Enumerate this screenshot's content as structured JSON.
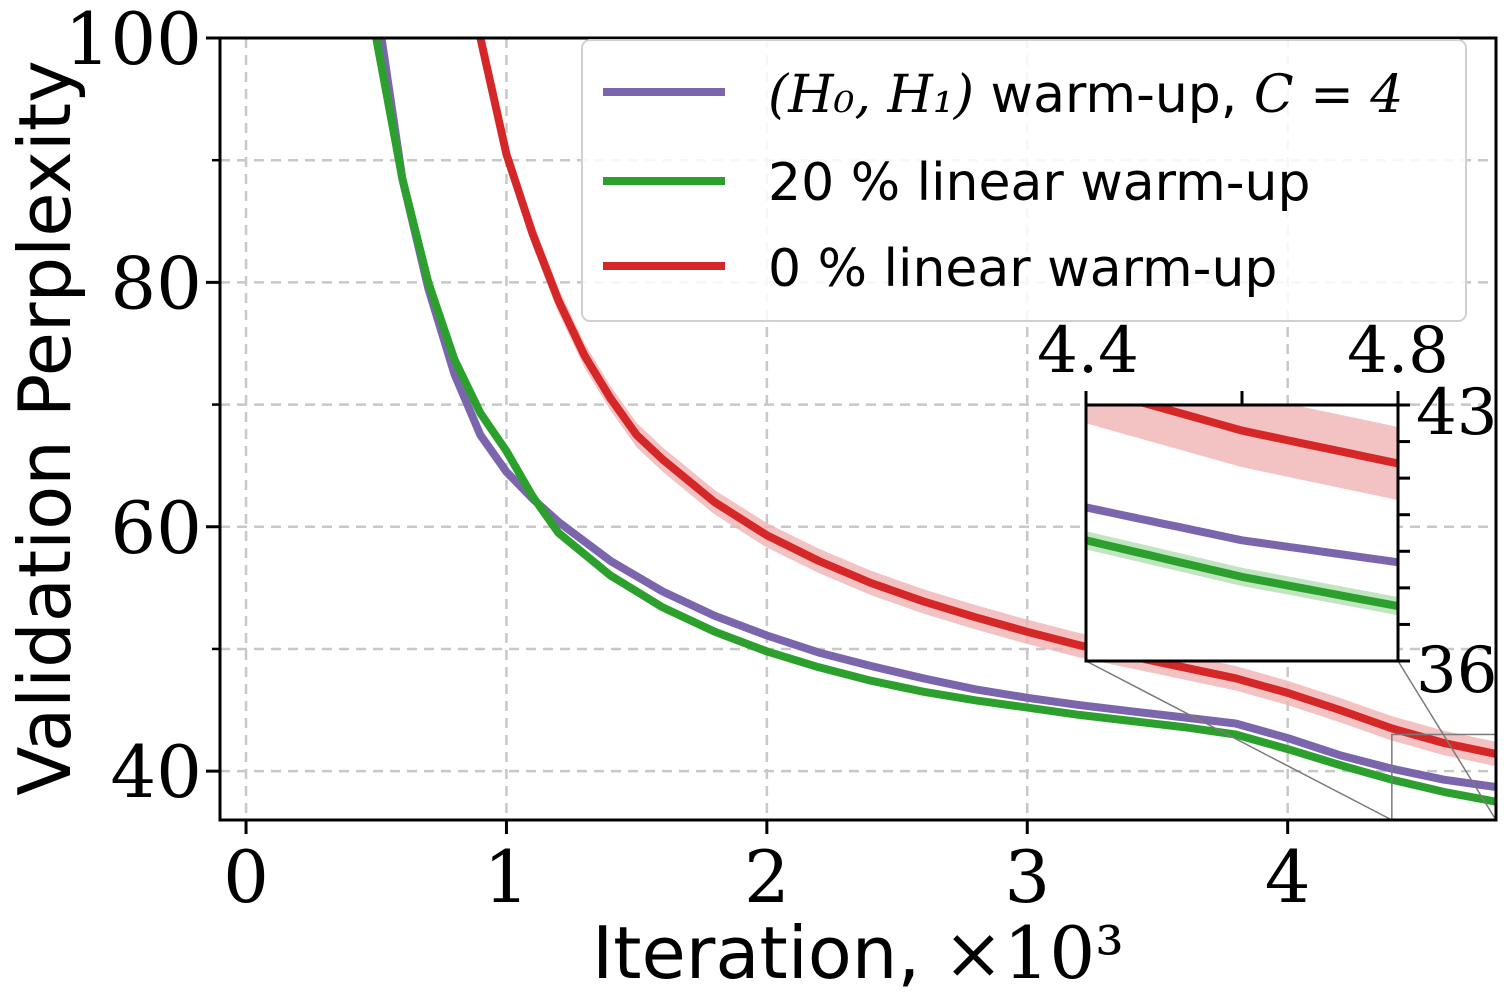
{
  "colors": {
    "purple": "#7b66ae",
    "green": "#2ca02c",
    "red": "#d62728",
    "red_band": "#f0b3b4",
    "green_band": "#a6d9a6"
  },
  "chart_data": {
    "type": "line",
    "title": "",
    "xlabel": "Iteration, ×10³",
    "xlabel_text": "Iteration, ",
    "xlabel_math": "×10³",
    "ylabel": "Validation Perplexity",
    "xlim": [
      -0.1,
      4.8
    ],
    "ylim": [
      36,
      100
    ],
    "xticks": [
      "0",
      "1",
      "2",
      "3",
      "4"
    ],
    "yticks": [
      "40",
      "60",
      "80",
      "100"
    ],
    "grid": true,
    "legend_position": "top-right",
    "series": [
      {
        "name": "(H₀, H₁) warm-up, C = 4",
        "legend_math": "(H₀, H₁)",
        "legend_text": " warm-up, ",
        "legend_math2": "C = 4",
        "color": "purple",
        "x": [
          0.52,
          0.6,
          0.7,
          0.8,
          0.9,
          1.0,
          1.1,
          1.2,
          1.4,
          1.6,
          1.8,
          2.0,
          2.2,
          2.4,
          2.6,
          2.8,
          3.0,
          3.2,
          3.4,
          3.6,
          3.8,
          4.0,
          4.2,
          4.4,
          4.6,
          4.8
        ],
        "y": [
          100,
          88.5,
          79.5,
          72.5,
          67.5,
          64.5,
          62.3,
          60.4,
          57.2,
          54.7,
          52.7,
          51.1,
          49.7,
          48.6,
          47.6,
          46.7,
          46.0,
          45.4,
          44.9,
          44.4,
          43.9,
          42.7,
          41.3,
          40.2,
          39.3,
          38.7
        ]
      },
      {
        "name": "20 % linear warm-up",
        "legend_text": "20 % linear warm-up",
        "color": "green",
        "x": [
          0.5,
          0.6,
          0.7,
          0.8,
          0.9,
          1.0,
          1.1,
          1.2,
          1.4,
          1.6,
          1.8,
          2.0,
          2.2,
          2.4,
          2.6,
          2.8,
          3.0,
          3.2,
          3.4,
          3.6,
          3.8,
          4.0,
          4.2,
          4.4,
          4.6,
          4.8
        ],
        "y": [
          100,
          88.5,
          80.0,
          73.7,
          69.3,
          66.2,
          62.5,
          59.5,
          56.0,
          53.4,
          51.4,
          49.8,
          48.5,
          47.4,
          46.5,
          45.8,
          45.2,
          44.6,
          44.1,
          43.6,
          43.0,
          41.8,
          40.5,
          39.3,
          38.3,
          37.5
        ]
      },
      {
        "name": "0 % linear warm-up",
        "legend_text": "0 % linear warm-up",
        "color": "red",
        "x": [
          0.9,
          1.0,
          1.1,
          1.2,
          1.3,
          1.4,
          1.5,
          1.6,
          1.8,
          2.0,
          2.2,
          2.4,
          2.6,
          2.8,
          3.0,
          3.2,
          3.4,
          3.6,
          3.8,
          4.0,
          4.2,
          4.4,
          4.6,
          4.8
        ],
        "y": [
          100,
          90.5,
          84.0,
          78.5,
          74.0,
          70.5,
          67.5,
          65.5,
          62.0,
          59.3,
          57.2,
          55.4,
          53.9,
          52.6,
          51.4,
          50.3,
          49.4,
          48.5,
          47.6,
          46.4,
          45.0,
          43.5,
          42.3,
          41.4
        ],
        "band": 1.0
      }
    ],
    "inset": {
      "xlim": [
        4.4,
        4.8
      ],
      "ylim": [
        36,
        43
      ],
      "xticks": [
        "4.4",
        "4.8"
      ],
      "yticks": [
        "43",
        "36"
      ]
    }
  }
}
